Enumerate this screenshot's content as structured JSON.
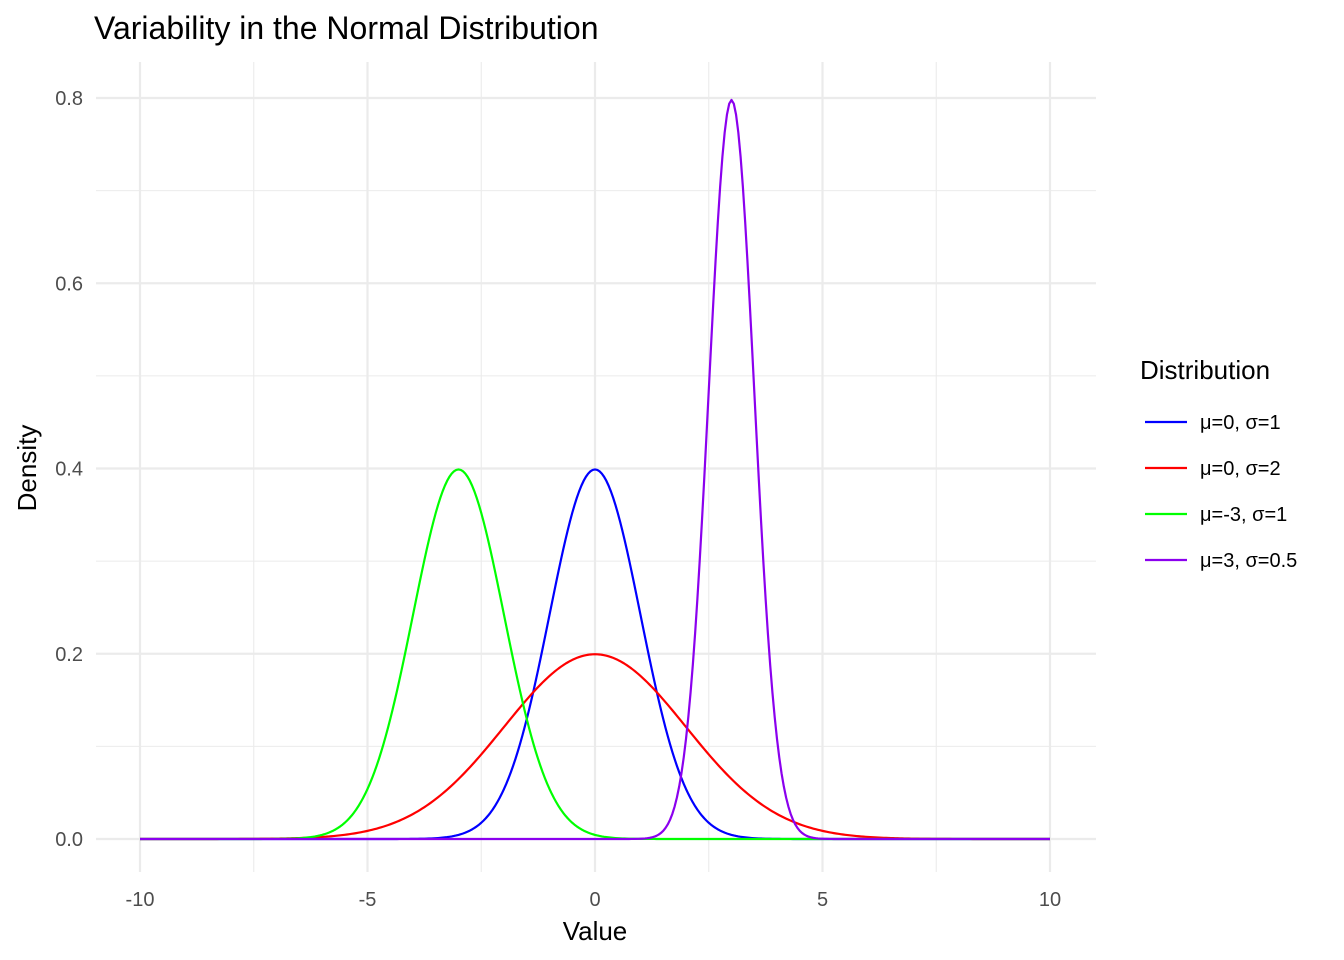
{
  "chart_data": {
    "type": "line",
    "title": "Variability in the Normal Distribution",
    "xlabel": "Value",
    "ylabel": "Density",
    "xlim": [
      -10,
      10
    ],
    "ylim": [
      0,
      0.8
    ],
    "x_ticks": [
      -10,
      -5,
      0,
      5,
      10
    ],
    "x_tick_labels": [
      "-10",
      "-5",
      "0",
      "5",
      "10"
    ],
    "y_ticks": [
      0,
      0.2,
      0.4,
      0.6,
      0.8
    ],
    "y_tick_labels": [
      "0.0",
      "0.2",
      "0.4",
      "0.6",
      "0.8"
    ],
    "grid": true,
    "legend": {
      "title": "Distribution",
      "position": "right"
    },
    "series": [
      {
        "name": "μ=0, σ=1",
        "mean": 0,
        "sd": 1,
        "color": "#0000ff"
      },
      {
        "name": "μ=0, σ=2",
        "mean": 0,
        "sd": 2,
        "color": "#ff0000"
      },
      {
        "name": "μ=-3, σ=1",
        "mean": -3,
        "sd": 1,
        "color": "#00ff00"
      },
      {
        "name": "μ=3, σ=0.5",
        "mean": 3,
        "sd": 0.5,
        "color": "#8b00ee"
      }
    ]
  }
}
